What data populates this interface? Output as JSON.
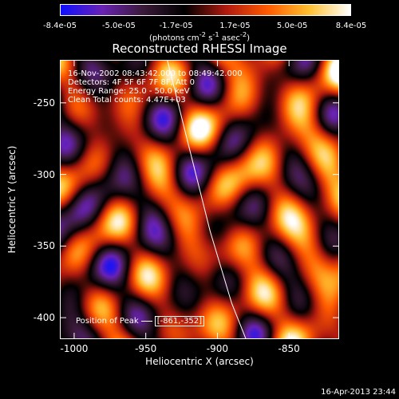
{
  "colorbar": {
    "ticks": [
      "-8.4e-05",
      "-5.0e-05",
      "-1.7e-05",
      "1.7e-05",
      "5.0e-05",
      "8.4e-05"
    ],
    "tick_values": [
      -8.4e-05,
      -5e-05,
      -1.7e-05,
      1.7e-05,
      5e-05,
      8.4e-05
    ],
    "range": [
      -8.4e-05,
      8.4e-05
    ],
    "units_text": "(photons cm",
    "units_exp1": "-2",
    "units_mid": " s",
    "units_exp2": "-1",
    "units_mid2": " asec",
    "units_exp3": "-2",
    "units_end": ")",
    "colors": [
      "#1010ff",
      "#6a22b4",
      "#3a1a38",
      "#000000",
      "#b01a10",
      "#ff5a00",
      "#ffc030",
      "#ffffff"
    ]
  },
  "chart_data": {
    "type": "heatmap",
    "title": "Reconstructed RHESSI Image",
    "xlabel": "Heliocentric X (arcsec)",
    "ylabel": "Heliocentric Y (arcsec)",
    "xlim": [
      -1010,
      -815
    ],
    "ylim": [
      -415,
      -220
    ],
    "xticks": [
      -1000,
      -950,
      -900,
      -850
    ],
    "yticks": [
      -250,
      -300,
      -350,
      -400
    ],
    "xtick_labels": [
      "-1000",
      "-950",
      "-900",
      "-850"
    ],
    "ytick_labels": [
      "-250",
      "-300",
      "-350",
      "-400"
    ],
    "peak": [
      -861,
      -352
    ],
    "solar_limb": [
      [
        -935,
        -220
      ],
      [
        -920,
        -280
      ],
      [
        -905,
        -340
      ],
      [
        -890,
        -390
      ],
      [
        -880,
        -415
      ]
    ],
    "info_lines": [
      "16-Nov-2002 08:43:42.000 to 08:49:42.000",
      "Detectors: 4F 5F 6F 7F 8F, Att 0",
      "Energy Range: 25.0 - 50.0 keV",
      "Clean    Total counts: 4.47E+03"
    ],
    "peak_label": "Position of Peak",
    "peak_value": "[-861,-352]"
  },
  "timestamp": "16-Apr-2013 23:44"
}
